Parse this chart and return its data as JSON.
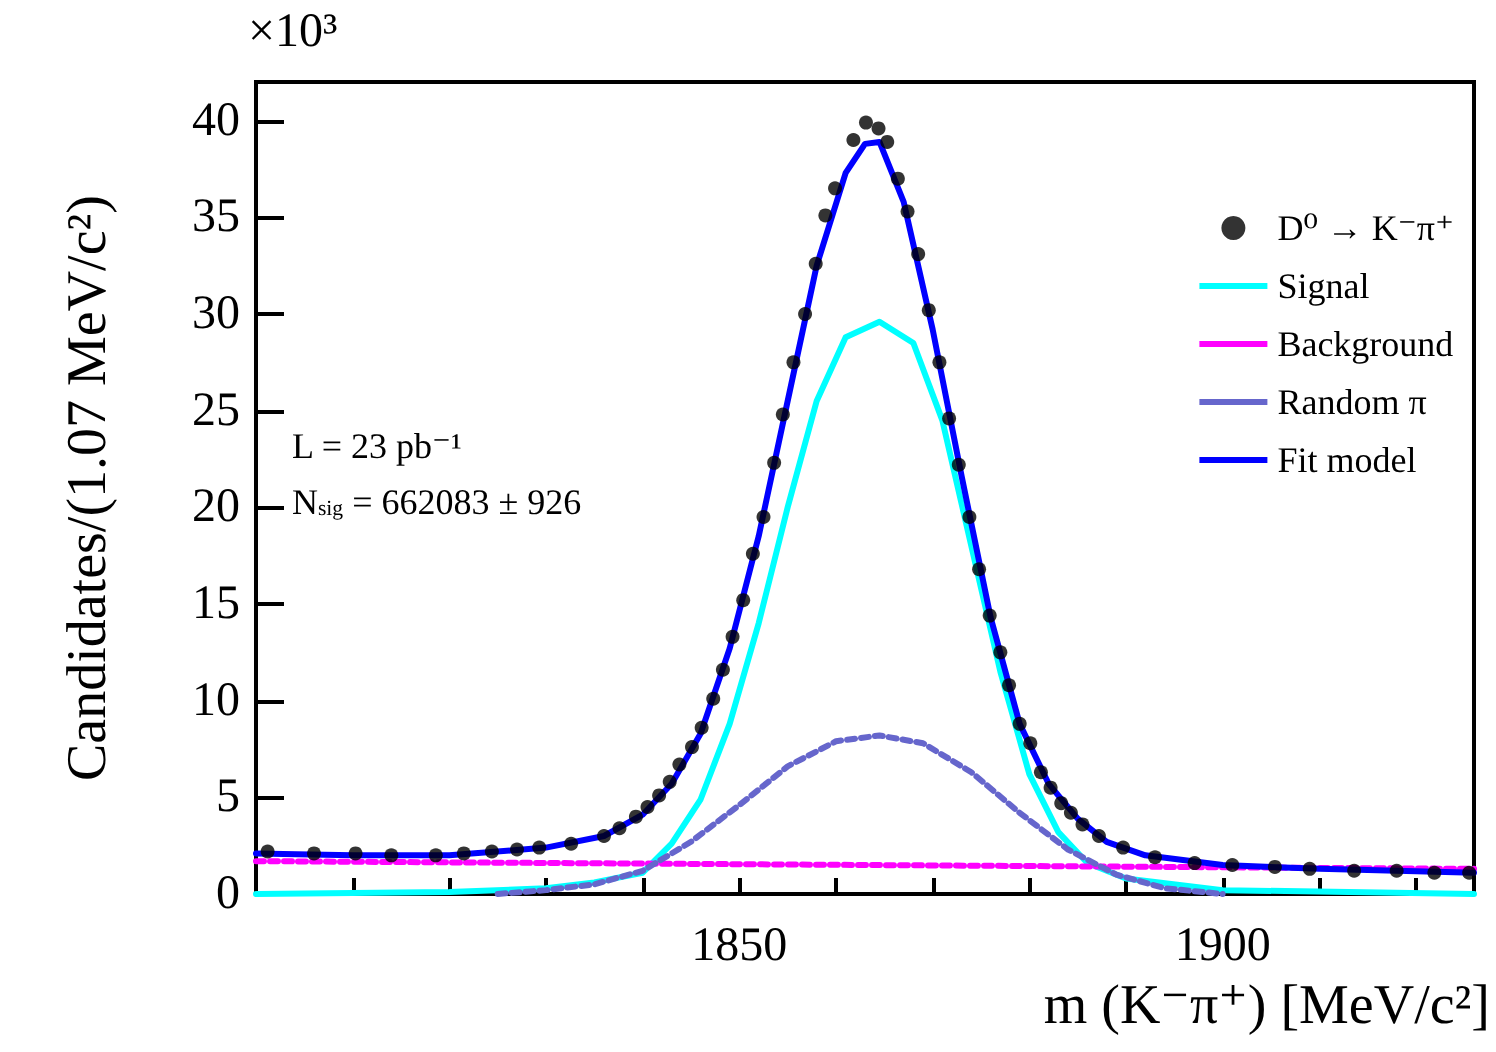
{
  "chart_data": {
    "type": "scatter",
    "xlabel": "m (K⁻π⁺) [MeV/c²]",
    "ylabel": "Candidates/(1.07 MeV/c²)",
    "annotations": [
      "×10³",
      "L = 23 pb⁻¹",
      "N$_{sig}$ = 662083 ± 926"
    ],
    "xlim": [
      1800,
      1926
    ],
    "ylim": [
      0,
      42
    ],
    "xticks": [
      {
        "value": 1810,
        "label": null
      },
      {
        "value": 1820,
        "label": null
      },
      {
        "value": 1830,
        "label": null
      },
      {
        "value": 1840,
        "label": null
      },
      1850,
      {
        "value": 1860,
        "label": null
      },
      {
        "value": 1870,
        "label": null
      },
      {
        "value": 1880,
        "label": null
      },
      {
        "value": 1890,
        "label": null
      },
      1900,
      {
        "value": 1910,
        "label": null
      },
      {
        "value": 1920,
        "label": null
      }
    ],
    "yticks": [
      0,
      5,
      10,
      15,
      20,
      25,
      30,
      35,
      40
    ],
    "grid": false,
    "legend": "top right",
    "series": [
      {
        "name": "D⁰ → K⁻π⁺",
        "marker": "circle",
        "color": "#000000",
        "x": [
          1801.2,
          1806,
          1810.3,
          1814,
          1818.6,
          1821.5,
          1824.4,
          1827,
          1829.3,
          1832.6,
          1836.0,
          1837.6,
          1839.3,
          1840.5,
          1841.7,
          1842.8,
          1843.8,
          1845.1,
          1846.1,
          1847.3,
          1848.3,
          1849.3,
          1850.4,
          1851.4,
          1852.5,
          1853.6,
          1854.5,
          1855.6,
          1856.8,
          1857.9,
          1858.9,
          1859.9,
          1861.8,
          1863.1,
          1864.4,
          1865.3,
          1866.4,
          1867.4,
          1868.5,
          1869.6,
          1870.7,
          1871.7,
          1872.7,
          1873.8,
          1874.8,
          1875.9,
          1877.0,
          1877.9,
          1879.0,
          1880.1,
          1881.2,
          1882.2,
          1883.3,
          1884.3,
          1885.5,
          1887.2,
          1889.7,
          1893.0,
          1897.1,
          1901,
          1905.4,
          1909,
          1913.6,
          1918,
          1921.9,
          1925.5
        ],
        "values": [
          2.2,
          2.1,
          2.1,
          2.0,
          2.0,
          2.1,
          2.2,
          2.3,
          2.4,
          2.6,
          3.0,
          3.4,
          4.0,
          4.5,
          5.1,
          5.8,
          6.7,
          7.6,
          8.6,
          10.1,
          11.6,
          13.3,
          15.2,
          17.6,
          19.5,
          22.3,
          24.8,
          27.5,
          30.0,
          32.6,
          35.1,
          36.5,
          39.0,
          39.9,
          39.6,
          38.9,
          37.0,
          35.3,
          33.1,
          30.2,
          27.5,
          24.6,
          22.2,
          19.5,
          16.8,
          14.4,
          12.5,
          10.8,
          8.8,
          7.8,
          6.3,
          5.5,
          4.7,
          4.2,
          3.6,
          3.0,
          2.4,
          1.9,
          1.6,
          1.5,
          1.4,
          1.3,
          1.2,
          1.2,
          1.1,
          1.1
        ]
      },
      {
        "name": "Signal",
        "type": "line",
        "line_style": "solid",
        "color": "#00ffff",
        "x": [
          1800,
          1820,
          1830,
          1835,
          1840,
          1843,
          1846,
          1849,
          1852,
          1855,
          1858,
          1861,
          1864.5,
          1868,
          1871,
          1874,
          1877,
          1880,
          1883,
          1886,
          1890,
          1900,
          1926
        ],
        "values": [
          0,
          0.1,
          0.3,
          0.6,
          1.1,
          2.6,
          4.9,
          8.8,
          14,
          20,
          25.5,
          28.8,
          29.6,
          28.5,
          24.5,
          18,
          11.5,
          6.2,
          3.2,
          1.6,
          0.8,
          0.2,
          0
        ]
      },
      {
        "name": "Background",
        "type": "line",
        "line_style": "dashed",
        "color": "#ff00ff",
        "x": [
          1800,
          1926
        ],
        "values": [
          1.7,
          1.3
        ]
      },
      {
        "name": "Random π",
        "type": "line",
        "line_style": "dashed",
        "color": "#6666cc",
        "x": [
          1825,
          1830,
          1835,
          1840,
          1845,
          1850,
          1855,
          1860,
          1864.5,
          1869,
          1874,
          1879,
          1884,
          1889,
          1894,
          1900
        ],
        "values": [
          0,
          0.2,
          0.5,
          1.2,
          2.7,
          4.6,
          6.6,
          7.9,
          8.2,
          7.8,
          6.3,
          4.2,
          2.3,
          1.0,
          0.3,
          0
        ]
      },
      {
        "name": "Fit model",
        "type": "line",
        "line_style": "solid",
        "color": "#0000ff",
        "x": [
          1800,
          1810,
          1820,
          1830,
          1836,
          1840,
          1843,
          1846,
          1849,
          1852,
          1855,
          1858,
          1861,
          1863,
          1864.5,
          1867,
          1870,
          1873,
          1876,
          1879,
          1882,
          1885,
          1888,
          1892,
          1900,
          1910,
          1926
        ],
        "values": [
          2.1,
          2.0,
          2.0,
          2.4,
          3.0,
          4.1,
          5.7,
          8.3,
          12.7,
          18.5,
          25.5,
          32.5,
          37.3,
          38.8,
          38.9,
          35.8,
          29.2,
          21.6,
          14.3,
          8.8,
          5.7,
          3.9,
          2.7,
          2.0,
          1.5,
          1.3,
          1.1
        ]
      }
    ]
  }
}
